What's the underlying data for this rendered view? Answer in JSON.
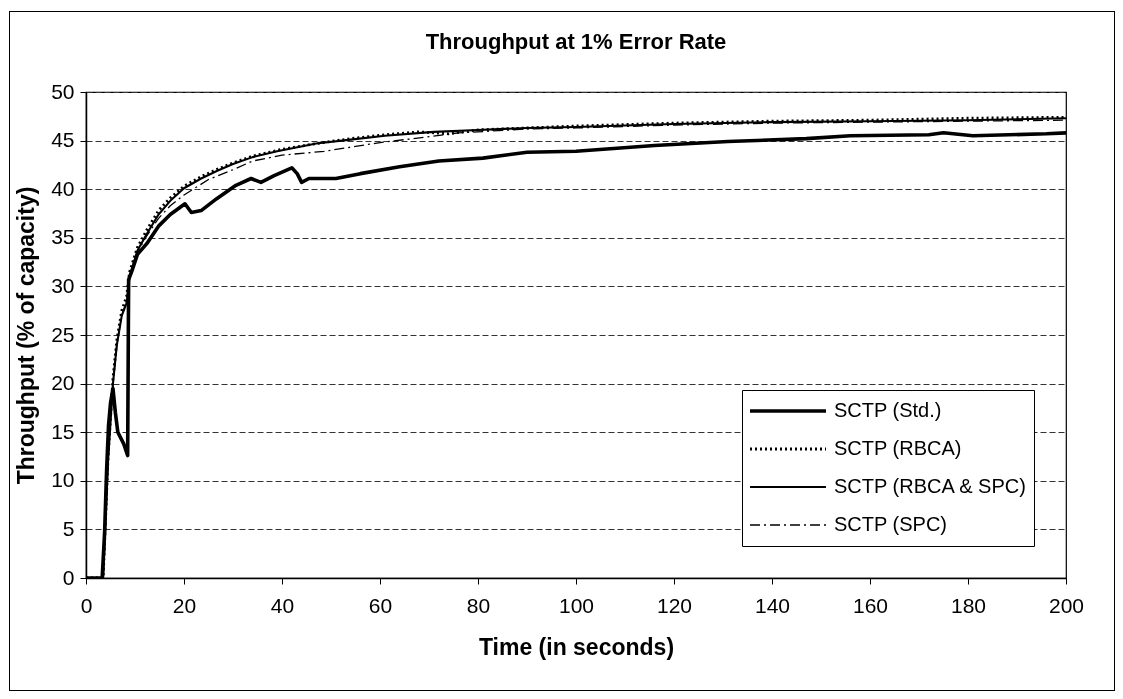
{
  "chart_data": {
    "type": "line",
    "title": "Throughput at 1% Error Rate",
    "xlabel": "Time (in seconds)",
    "ylabel": "Throughput (% of capacity)",
    "xlim": [
      0,
      200
    ],
    "xticks": [
      0,
      20,
      40,
      60,
      80,
      100,
      120,
      140,
      160,
      180,
      200
    ],
    "ylim": [
      0,
      50
    ],
    "yticks": [
      0,
      5,
      10,
      15,
      20,
      25,
      30,
      35,
      40,
      45,
      50
    ],
    "grid": "y",
    "legend": "bottom right",
    "series": [
      {
        "name": "SCTP (Std.)",
        "color": "#000000",
        "line_style": "solid",
        "x": [
          0,
          3.3,
          3.8,
          4.2,
          4.6,
          5.0,
          5.5,
          6.0,
          6.5,
          7.7,
          8.5,
          8.7,
          9.3,
          10.5,
          12.4,
          14.8,
          17.2,
          20.2,
          21.5,
          23.5,
          26.6,
          30.6,
          33.7,
          35.7,
          38.4,
          42,
          43.1,
          44,
          45.5,
          51,
          56,
          64,
          72,
          81,
          90,
          100,
          116,
          131,
          147,
          156,
          172,
          175,
          181,
          196,
          200
        ],
        "values": [
          0,
          0,
          4.7,
          11,
          15.7,
          18,
          19.5,
          17,
          15,
          13.8,
          12.6,
          30.7,
          31.5,
          33.3,
          34.4,
          36.2,
          37.4,
          38.5,
          37.6,
          37.8,
          39,
          40.4,
          41.1,
          40.7,
          41.4,
          42.2,
          41.6,
          40.7,
          41.1,
          41.1,
          41.6,
          42.3,
          42.9,
          43.2,
          43.8,
          43.9,
          44.5,
          44.9,
          45.2,
          45.5,
          45.6,
          45.8,
          45.5,
          45.7,
          45.8
        ]
      },
      {
        "name": "SCTP (RBCA)",
        "color": "#000000",
        "line_style": "dotted",
        "x": [
          0,
          3.5,
          4.5,
          5.5,
          6.3,
          7.3,
          8.3,
          8.9,
          10.5,
          12.4,
          14.8,
          17.2,
          20,
          23.5,
          27,
          30,
          34,
          40,
          47,
          54,
          61,
          68,
          74,
          80,
          90,
          100,
          120,
          140,
          160,
          180,
          200
        ],
        "values": [
          0,
          0,
          12.5,
          20.5,
          24.5,
          27.5,
          29,
          31.5,
          34,
          35.8,
          37.8,
          39.1,
          40.3,
          41.3,
          42.1,
          42.7,
          43.4,
          44.1,
          44.7,
          45.2,
          45.6,
          45.9,
          45.7,
          46.1,
          46.3,
          46.5,
          46.8,
          47.0,
          47.1,
          47.3,
          47.4
        ]
      },
      {
        "name": "SCTP (RBCA & SPC)",
        "color": "#000000",
        "line_style": "solid",
        "x": [
          0,
          3.5,
          4.5,
          5.5,
          6.3,
          7.3,
          8.3,
          8.9,
          10.5,
          12.4,
          14.8,
          17.2,
          20,
          23.5,
          26.8,
          30,
          34,
          39,
          47,
          54,
          61,
          71,
          80,
          90,
          100,
          120,
          140,
          160,
          180,
          200
        ],
        "values": [
          0,
          0,
          12,
          20,
          24,
          27,
          28.3,
          31,
          33.7,
          35.4,
          37.4,
          38.8,
          40.1,
          41.1,
          41.9,
          42.6,
          43.3,
          43.9,
          44.7,
          45.1,
          45.5,
          45.9,
          46.1,
          46.3,
          46.4,
          46.7,
          46.9,
          47.0,
          47.1,
          47.3
        ]
      },
      {
        "name": "SCTP (SPC)",
        "color": "#000000",
        "line_style": "dashdot",
        "x": [
          0,
          3.5,
          4.5,
          5.5,
          6.3,
          7.3,
          8.3,
          8.9,
          10.5,
          12.4,
          14.8,
          17.2,
          20,
          25,
          30,
          34,
          40,
          48.6,
          55,
          60,
          70,
          76,
          80,
          90,
          100,
          120,
          140,
          160,
          180,
          200
        ],
        "values": [
          0,
          0,
          12,
          20,
          24,
          27,
          28.5,
          31,
          33.5,
          35.2,
          37,
          38.3,
          39.4,
          41,
          42,
          42.9,
          43.5,
          43.9,
          44.4,
          44.8,
          45.4,
          45.8,
          45.9,
          46.2,
          46.3,
          46.6,
          46.8,
          46.9,
          47.0,
          47.1
        ]
      }
    ]
  }
}
